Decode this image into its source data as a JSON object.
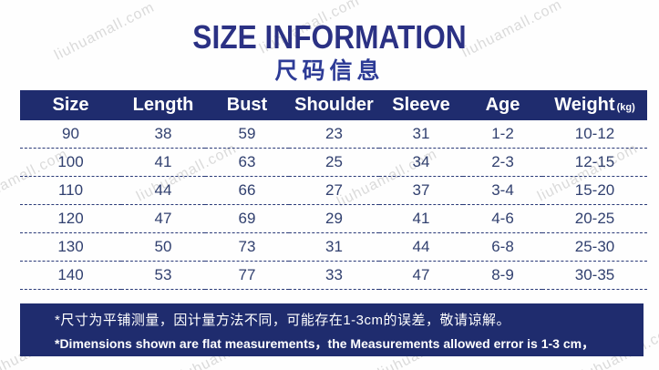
{
  "watermark": {
    "text": "liuhuamall.com"
  },
  "chart_data": {
    "type": "table",
    "title": "SIZE INFORMATION",
    "subtitle": "尺码信息",
    "columns": [
      {
        "label": "Size",
        "unit": ""
      },
      {
        "label": "Length",
        "unit": ""
      },
      {
        "label": "Bust",
        "unit": ""
      },
      {
        "label": "Shoulder",
        "unit": ""
      },
      {
        "label": "Sleeve",
        "unit": ""
      },
      {
        "label": "Age",
        "unit": ""
      },
      {
        "label": "Weight",
        "unit": "(kg)"
      }
    ],
    "rows": [
      [
        "90",
        "38",
        "59",
        "23",
        "31",
        "1-2",
        "10-12"
      ],
      [
        "100",
        "41",
        "63",
        "25",
        "34",
        "2-3",
        "12-15"
      ],
      [
        "110",
        "44",
        "66",
        "27",
        "37",
        "3-4",
        "15-20"
      ],
      [
        "120",
        "47",
        "69",
        "29",
        "41",
        "4-6",
        "20-25"
      ],
      [
        "130",
        "50",
        "73",
        "31",
        "44",
        "6-8",
        "25-30"
      ],
      [
        "140",
        "53",
        "77",
        "33",
        "47",
        "8-9",
        "30-35"
      ]
    ],
    "notes": [
      "*尺寸为平铺测量，因计量方法不同，可能存在1-3cm的误差，敬请谅解。",
      "*Dimensions shown are flat measurements，the Measurements allowed error is 1-3 cm，"
    ]
  },
  "colors": {
    "navy_bar": "#1f2c6e",
    "title_text": "#2b3184",
    "subtitle_text": "#2d3b96",
    "cell_text": "#31406f",
    "dash_line": "#2a3a78"
  }
}
